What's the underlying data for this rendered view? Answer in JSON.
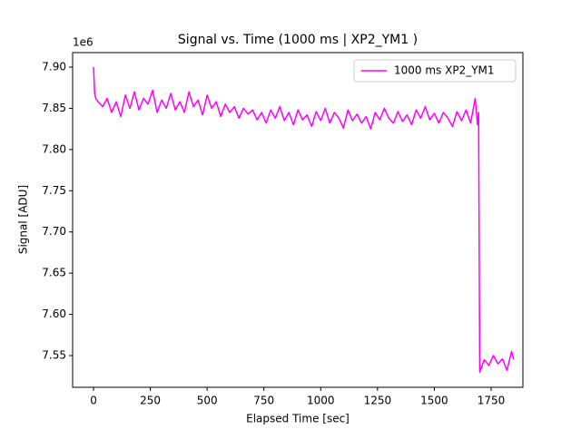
{
  "chart_data": {
    "type": "line",
    "title": "Signal vs. Time (1000 ms | XP2_YM1 )",
    "x_label": "Elapsed Time [sec]",
    "y_label": "Signal [ADU]",
    "y_offset_label": "1e6",
    "legend_position": "upper right",
    "x": [
      0,
      5,
      10,
      20,
      40,
      60,
      80,
      100,
      120,
      140,
      160,
      180,
      200,
      220,
      240,
      260,
      280,
      300,
      320,
      340,
      360,
      380,
      400,
      420,
      440,
      460,
      480,
      500,
      520,
      540,
      560,
      580,
      600,
      620,
      640,
      660,
      680,
      700,
      720,
      740,
      760,
      780,
      800,
      820,
      840,
      860,
      880,
      900,
      920,
      940,
      960,
      980,
      1000,
      1020,
      1040,
      1060,
      1080,
      1100,
      1120,
      1140,
      1160,
      1180,
      1200,
      1220,
      1240,
      1260,
      1280,
      1300,
      1320,
      1340,
      1360,
      1380,
      1400,
      1420,
      1440,
      1460,
      1480,
      1500,
      1520,
      1540,
      1560,
      1580,
      1600,
      1620,
      1640,
      1660,
      1680,
      1690,
      1695,
      1700,
      1720,
      1740,
      1760,
      1780,
      1800,
      1820,
      1840,
      1850
    ],
    "series": [
      {
        "name": "1000 ms XP2_YM1",
        "color": "#ff00ff",
        "values": [
          7900000,
          7868000,
          7862000,
          7858000,
          7852000,
          7862000,
          7845000,
          7858000,
          7840000,
          7866000,
          7850000,
          7870000,
          7848000,
          7862000,
          7855000,
          7872000,
          7845000,
          7860000,
          7850000,
          7868000,
          7848000,
          7858000,
          7845000,
          7870000,
          7852000,
          7860000,
          7842000,
          7866000,
          7850000,
          7858000,
          7840000,
          7855000,
          7845000,
          7852000,
          7838000,
          7850000,
          7843000,
          7848000,
          7836000,
          7845000,
          7832000,
          7848000,
          7838000,
          7852000,
          7835000,
          7845000,
          7830000,
          7848000,
          7836000,
          7842000,
          7828000,
          7846000,
          7835000,
          7850000,
          7832000,
          7845000,
          7838000,
          7826000,
          7848000,
          7835000,
          7843000,
          7832000,
          7840000,
          7825000,
          7845000,
          7836000,
          7850000,
          7838000,
          7832000,
          7846000,
          7834000,
          7842000,
          7830000,
          7848000,
          7838000,
          7852000,
          7836000,
          7844000,
          7832000,
          7845000,
          7838000,
          7828000,
          7846000,
          7835000,
          7848000,
          7832000,
          7862000,
          7830000,
          7845000,
          7530000,
          7545000,
          7538000,
          7550000,
          7540000,
          7546000,
          7532000,
          7555000,
          7545000
        ]
      }
    ],
    "xlim": [
      -92,
      1890
    ],
    "xticks": [
      0,
      250,
      500,
      750,
      1000,
      1250,
      1500,
      1750
    ],
    "ylim": [
      7511500,
      7917600
    ],
    "yticks": [
      {
        "value": 7550000,
        "label": "7.55"
      },
      {
        "value": 7600000,
        "label": "7.60"
      },
      {
        "value": 7650000,
        "label": "7.65"
      },
      {
        "value": 7700000,
        "label": "7.70"
      },
      {
        "value": 7750000,
        "label": "7.75"
      },
      {
        "value": 7800000,
        "label": "7.80"
      },
      {
        "value": 7850000,
        "label": "7.85"
      },
      {
        "value": 7900000,
        "label": "7.90"
      }
    ]
  }
}
